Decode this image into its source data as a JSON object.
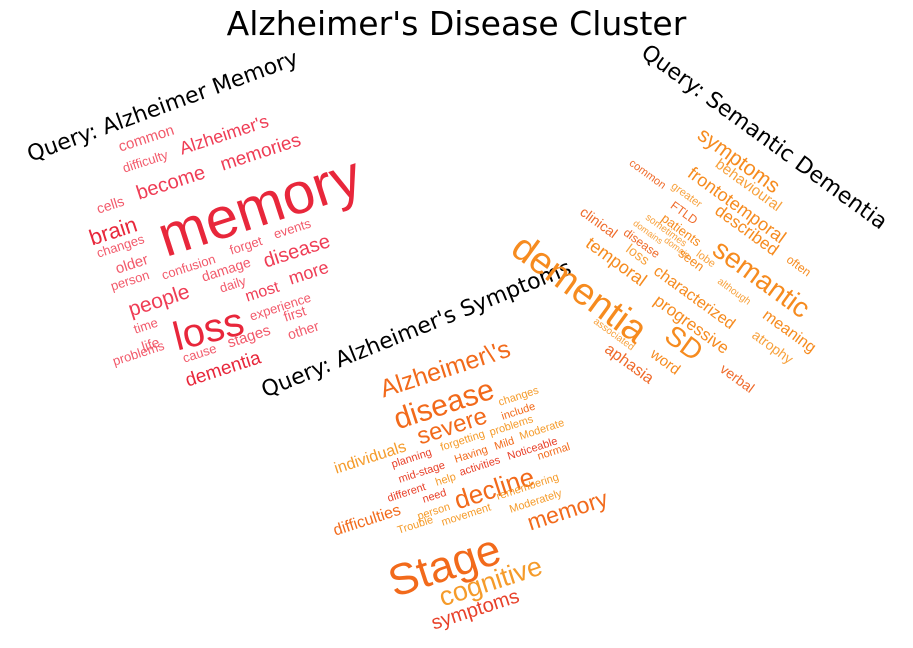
{
  "title": "Alzheimer's Disease Cluster",
  "queries": {
    "memory": "Query: Alzheimer Memory",
    "semantic": "Query: Semantic Dementia",
    "symptoms": "Query: Alzheimer's Symptoms"
  },
  "clouds": {
    "memory": {
      "colors": [
        "#e8273b",
        "#ef3d55",
        "#f25a6b"
      ],
      "words": [
        "memory",
        "loss",
        "brain",
        "become",
        "memories",
        "Alzheimer's",
        "common",
        "difficulty",
        "cells",
        "changes",
        "older",
        "person",
        "people",
        "confusion",
        "forget",
        "events",
        "damage",
        "disease",
        "daily",
        "most",
        "more",
        "experience",
        "time",
        "life",
        "cause",
        "stages",
        "first",
        "other",
        "problems",
        "dementia"
      ]
    },
    "semantic": {
      "colors": [
        "#f68b1f",
        "#f7a13c",
        "#ef6a2a"
      ],
      "words": [
        "symptoms",
        "behavioural",
        "frontotemporal",
        "described",
        "common",
        "greater",
        "FTLD",
        "patients",
        "sometimes",
        "domains",
        "domain",
        "lobe",
        "often",
        "semantic",
        "clinical",
        "disease",
        "seen",
        "although",
        "temporal",
        "loss",
        "characterized",
        "dementia",
        "progressive",
        "meaning",
        "atrophy",
        "SD",
        "associated",
        "word",
        "aphasia",
        "verbal"
      ]
    },
    "symptoms": {
      "colors": [
        "#f26a1b",
        "#f59b2a",
        "#e8412a"
      ],
      "words": [
        "Alzheimer\\'s",
        "disease",
        "severe",
        "individuals",
        "changes",
        "include",
        "forgetting",
        "problems",
        "planning",
        "Having",
        "Mild",
        "Moderate",
        "mid-stage",
        "activities",
        "Noticeable",
        "help",
        "normal",
        "different",
        "need",
        "decline",
        "difficulties",
        "person",
        "remembering",
        "Trouble",
        "movement",
        "Moderately",
        "memory",
        "Stage",
        "cognitive",
        "symptoms"
      ]
    }
  }
}
